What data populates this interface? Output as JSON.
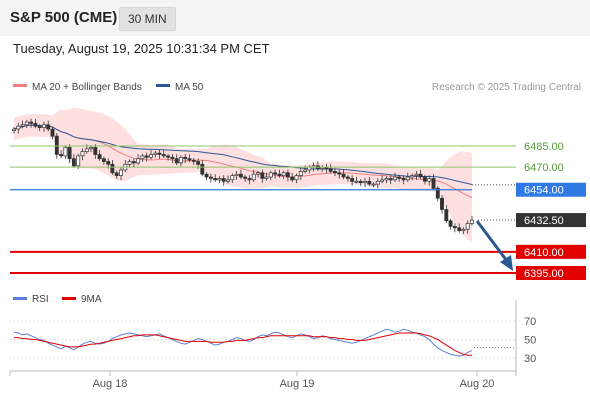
{
  "header": {
    "symbol": "S&P 500 (CME)",
    "interval": "30 MIN"
  },
  "datetime": "Tuesday, August 19, 2025 10:31:34 PM CET",
  "credit": "Research © 2025 Trading Central",
  "colors": {
    "green_level": "#8fc46a",
    "blue_level": "#2f7ae5",
    "red_level": "#e00000",
    "current": "#333333",
    "bollinger": "#ffd6d6",
    "ma20": "#f08080",
    "ma50": "#2b5797",
    "arrow": "#2b5797",
    "rsi": "#5b7fd8",
    "rsi_ma": "#e00000"
  },
  "chart_data": [
    {
      "type": "candlestick",
      "legend": [
        {
          "name": "MA 20 + Bollinger Bands",
          "color": "#f08080"
        },
        {
          "name": "MA 50",
          "color": "#2b5797"
        }
      ],
      "levels": [
        {
          "value": 6485.0,
          "label": "6485.00",
          "kind": "resistance",
          "color": "#8fc46a"
        },
        {
          "value": 6470.0,
          "label": "6470.00",
          "kind": "resistance",
          "color": "#8fc46a"
        },
        {
          "value": 6454.0,
          "label": "6454.00",
          "kind": "pivot",
          "color": "#2f7ae5"
        },
        {
          "value": 6432.5,
          "label": "6432.50",
          "kind": "last",
          "color": "#333333"
        },
        {
          "value": 6410.0,
          "label": "6410.00",
          "kind": "support",
          "color": "#e00000"
        },
        {
          "value": 6395.0,
          "label": "6395.00",
          "kind": "support",
          "color": "#e00000"
        }
      ],
      "x_ticks": [
        "Aug 18",
        "Aug 19",
        "Aug 20"
      ],
      "price_range": [
        6380,
        6520
      ],
      "close": [
        6497,
        6499,
        6500,
        6502,
        6501,
        6499,
        6498,
        6500,
        6497,
        6492,
        6479,
        6478,
        6484,
        6476,
        6471,
        6478,
        6481,
        6483,
        6484,
        6479,
        6476,
        6474,
        6472,
        6466,
        6464,
        6468,
        6472,
        6474,
        6473,
        6476,
        6478,
        6477,
        6479,
        6480,
        6479,
        6478,
        6477,
        6476,
        6473,
        6477,
        6476,
        6475,
        6474,
        6472,
        6465,
        6463,
        6462,
        6461,
        6462,
        6460,
        6461,
        6464,
        6465,
        6463,
        6462,
        6461,
        6465,
        6466,
        6462,
        6463,
        6466,
        6465,
        6464,
        6466,
        6463,
        6461,
        6464,
        6467,
        6468,
        6470,
        6471,
        6469,
        6470,
        6469,
        6467,
        6466,
        6465,
        6463,
        6462,
        6460,
        6460,
        6459,
        6460,
        6458,
        6458,
        6460,
        6461,
        6462,
        6461,
        6463,
        6462,
        6461,
        6463,
        6464,
        6465,
        6463,
        6460,
        6462,
        6455,
        6448,
        6440,
        6432,
        6428,
        6427,
        6425,
        6426,
        6430,
        6432.5
      ],
      "direction_forecast": "down"
    },
    {
      "type": "line",
      "legend": [
        {
          "name": "RSI",
          "color": "#5b7fd8"
        },
        {
          "name": "9MA",
          "color": "#e00000"
        }
      ],
      "y_ticks": [
        70,
        50,
        30
      ],
      "ylim": [
        20,
        80
      ],
      "rsi": [
        58,
        57,
        55,
        56,
        54,
        52,
        50,
        49,
        46,
        44,
        42,
        40,
        43,
        41,
        39,
        42,
        45,
        47,
        48,
        46,
        45,
        46,
        48,
        51,
        53,
        55,
        56,
        57,
        56,
        55,
        54,
        53,
        54,
        55,
        56,
        54,
        52,
        50,
        48,
        46,
        45,
        47,
        49,
        51,
        50,
        48,
        46,
        44,
        45,
        47,
        48,
        50,
        52,
        51,
        49,
        48,
        50,
        53,
        55,
        54,
        56,
        58,
        57,
        55,
        53,
        52,
        54,
        56,
        55,
        53,
        51,
        52,
        54,
        53,
        51,
        50,
        49,
        48,
        47,
        46,
        47,
        49,
        51,
        53,
        55,
        57,
        59,
        61,
        60,
        58,
        59,
        61,
        60,
        58,
        57,
        55,
        53,
        50,
        45,
        41,
        38,
        36,
        34,
        33,
        32,
        33,
        36,
        38
      ],
      "ma9": [
        52,
        52,
        51,
        51,
        50,
        50,
        49,
        48,
        47,
        46,
        45,
        44,
        43,
        42,
        42,
        42,
        43,
        44,
        45,
        45,
        46,
        47,
        48,
        49,
        50,
        51,
        52,
        53,
        54,
        54,
        55,
        55,
        55,
        55,
        54,
        53,
        52,
        51,
        50,
        49,
        48,
        48,
        48,
        48,
        48,
        48,
        47,
        47,
        47,
        47,
        48,
        48,
        49,
        49,
        49,
        50,
        51,
        52,
        52,
        53,
        54,
        54,
        54,
        54,
        54,
        54,
        54,
        54,
        54,
        54,
        53,
        53,
        53,
        53,
        52,
        52,
        51,
        51,
        50,
        50,
        49,
        49,
        49,
        50,
        51,
        52,
        53,
        54,
        55,
        56,
        57,
        57,
        57,
        57,
        57,
        56,
        55,
        54,
        52,
        50,
        47,
        44,
        41,
        38,
        36,
        34,
        33,
        33
      ]
    }
  ]
}
